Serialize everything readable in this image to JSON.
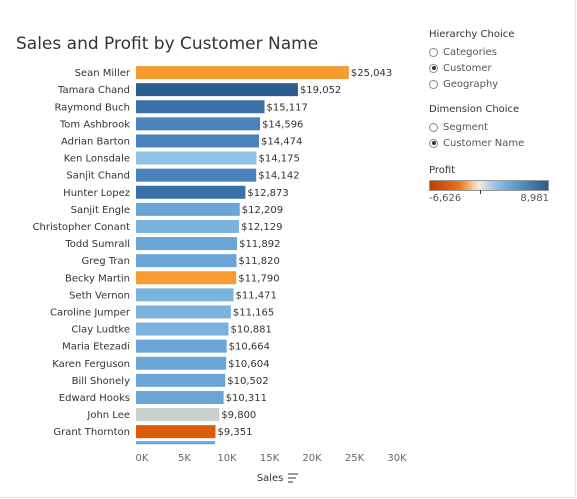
{
  "title": "Sales and Profit by Customer Name",
  "hierarchy": {
    "title": "Hierarchy Choice",
    "options": [
      "Categories",
      "Customer",
      "Geography"
    ],
    "selected": "Customer"
  },
  "dimension": {
    "title": "Dimension Choice",
    "options": [
      "Segment",
      "Customer Name"
    ],
    "selected": "Customer Name"
  },
  "profit_legend": {
    "title": "Profit",
    "min_label": "-6,626",
    "max_label": "8,981"
  },
  "chart_data": {
    "type": "bar",
    "orientation": "horizontal",
    "title": "Sales and Profit by Customer Name",
    "xlabel": "Sales",
    "xlim": [
      0,
      30000
    ],
    "xticks": [
      "0K",
      "5K",
      "10K",
      "15K",
      "20K",
      "25K",
      "30K"
    ],
    "xtick_values": [
      0,
      5000,
      10000,
      15000,
      20000,
      25000,
      30000
    ],
    "color_by": "Profit",
    "categories": [
      "Sean Miller",
      "Tamara Chand",
      "Raymond Buch",
      "Tom Ashbrook",
      "Adrian Barton",
      "Ken Lonsdale",
      "Sanjit Chand",
      "Hunter Lopez",
      "Sanjit Engle",
      "Christopher Conant",
      "Todd Sumrall",
      "Greg Tran",
      "Becky Martin",
      "Seth Vernon",
      "Caroline Jumper",
      "Clay Ludtke",
      "Maria Etezadi",
      "Karen Ferguson",
      "Bill Shonely",
      "Edward Hooks",
      "John Lee",
      "Grant Thornton"
    ],
    "values": [
      25043,
      19052,
      15117,
      14596,
      14474,
      14175,
      14142,
      12873,
      12209,
      12129,
      11892,
      11820,
      11790,
      11471,
      11165,
      10881,
      10664,
      10604,
      10502,
      10311,
      9800,
      9351
    ],
    "value_labels": [
      "$25,043",
      "$19,052",
      "$15,117",
      "$14,596",
      "$14,474",
      "$14,175",
      "$14,142",
      "$12,873",
      "$12,209",
      "$12,129",
      "$11,892",
      "$11,820",
      "$11,790",
      "$11,471",
      "$11,165",
      "$10,881",
      "$10,664",
      "$10,604",
      "$10,502",
      "$10,311",
      "$9,800",
      "$9,351"
    ],
    "colors": [
      "#f89b32",
      "#2c5d8f",
      "#3a71a8",
      "#4a82bb",
      "#4a82bb",
      "#8ec2e4",
      "#4a82bb",
      "#3a71a8",
      "#6aa5d7",
      "#7ab4de",
      "#6aa5d7",
      "#6aa5d7",
      "#f89b32",
      "#7ab4de",
      "#7ab4de",
      "#7ab4de",
      "#6aa5d7",
      "#6aa5d7",
      "#6aa5d7",
      "#6aa5d7",
      "#c8d2cc",
      "#de5a0a"
    ],
    "partial_next_color": "#6aa5d7",
    "grid": false
  }
}
